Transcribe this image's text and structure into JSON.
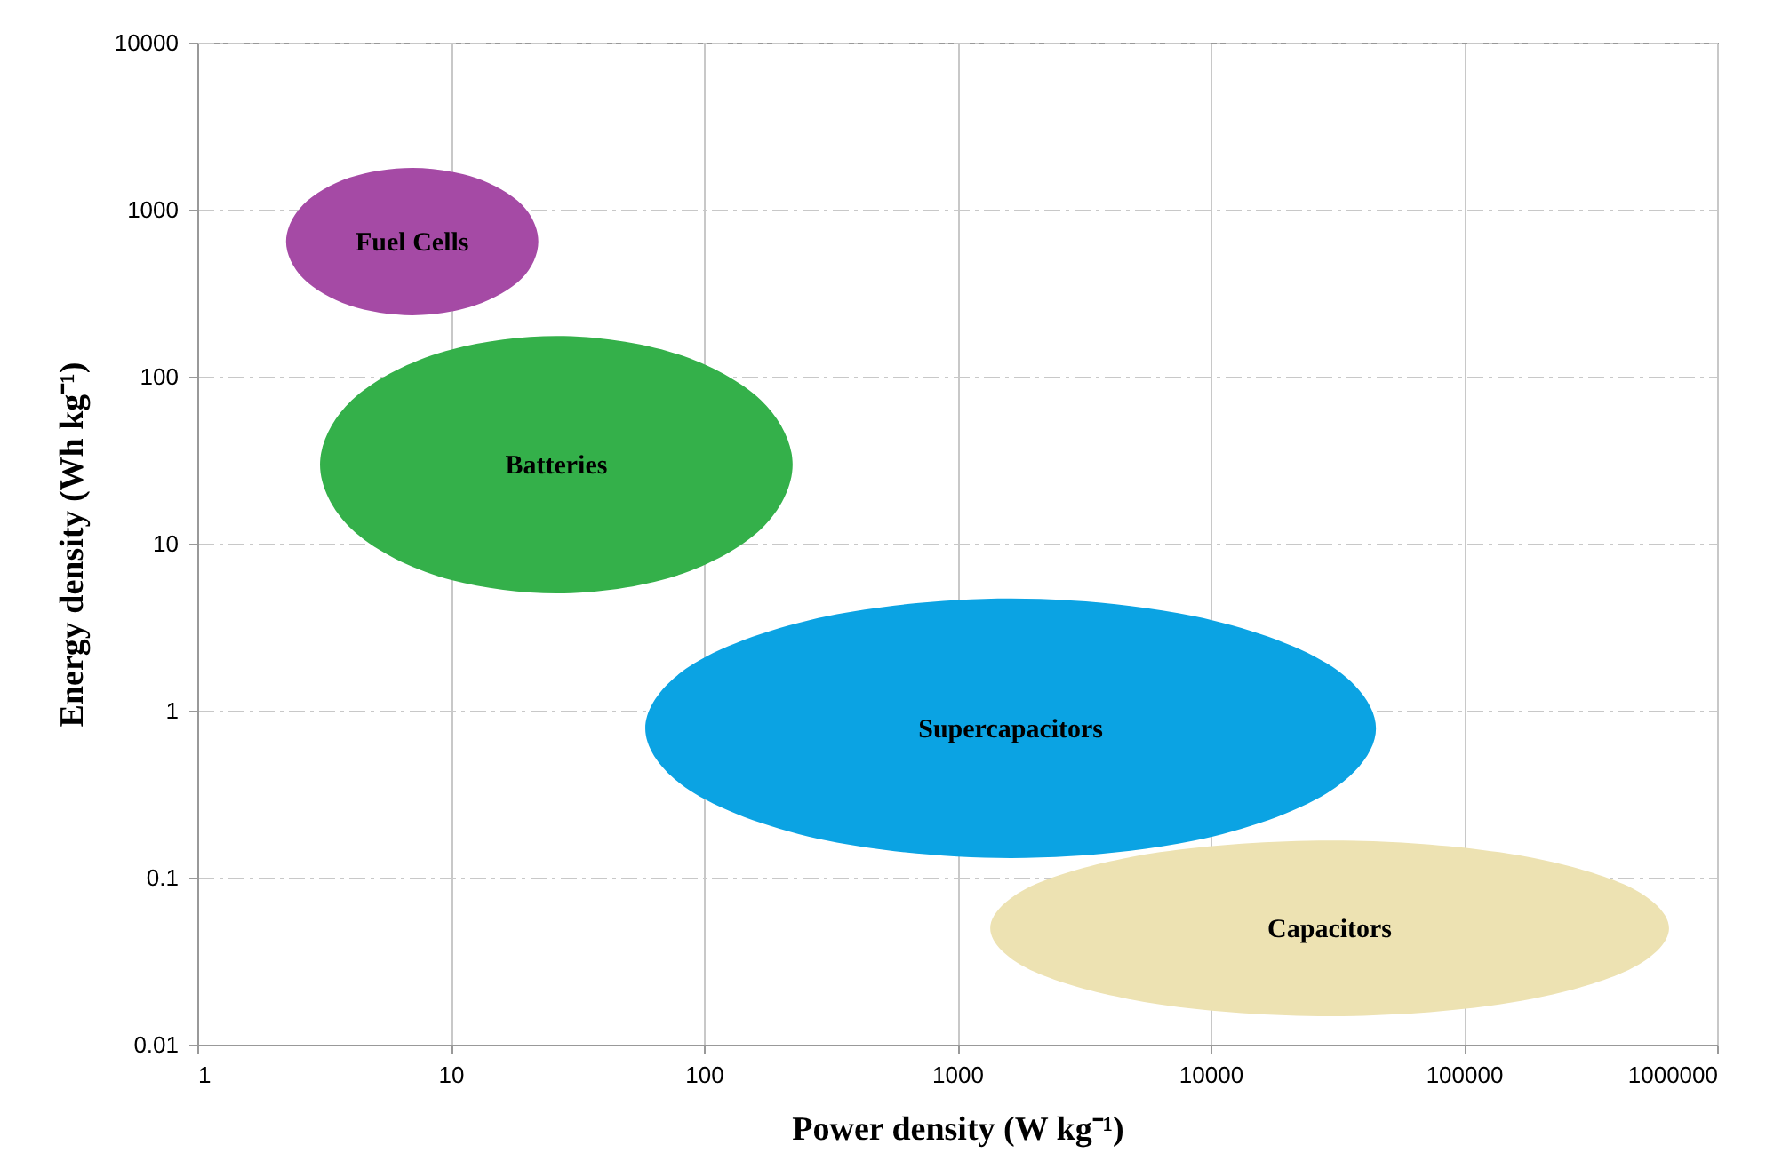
{
  "chart_data": {
    "type": "area",
    "xlabel": "Power density (W kg⁻¹)",
    "ylabel": "Energy density (Wh kg⁻¹)",
    "log": "xy",
    "grid": true,
    "xlim": [
      1,
      1000000
    ],
    "xticks": [
      1,
      10,
      100,
      1000,
      10000,
      100000,
      1000000
    ],
    "ylim": [
      0.01,
      10000
    ],
    "yticks": [
      0.01,
      0.1,
      1,
      10,
      100,
      1000,
      10000
    ],
    "series": [
      {
        "name": "Fuel Cells",
        "color": "#a54aa5",
        "x": [
          22.2,
          19.1,
          12.5,
          7.06,
          3.98,
          2.62,
          2.24,
          2.62,
          3.98,
          7.06,
          12.5,
          19.1
        ],
        "values": [
          644,
          1072,
          1552,
          1778,
          1552,
          1072,
          644,
          387,
          267,
          233,
          267,
          387
        ]
      },
      {
        "name": "Batteries",
        "color": "#34b04a",
        "x": [
          224,
          168,
          76.7,
          26.2,
          8.93,
          4.07,
          3.05,
          4.07,
          8.93,
          26.2,
          76.7,
          168
        ],
        "values": [
          29.7,
          72.3,
          138,
          175,
          138,
          72.3,
          29.7,
          12.2,
          6.38,
          5.04,
          6.38,
          12.2
        ]
      },
      {
        "name": "Supercapacitors",
        "color": "#0ba3e3",
        "x": [
          45000,
          28800,
          8550,
          1630,
          309,
          91.6,
          58.7,
          91.6,
          309,
          1630,
          8550,
          28800
        ],
        "values": [
          0.783,
          1.92,
          3.69,
          4.69,
          3.69,
          1.92,
          0.783,
          0.32,
          0.166,
          0.131,
          0.166,
          0.32
        ]
      },
      {
        "name": "Capacitors",
        "color": "#ede2b2",
        "x": [
          646000,
          427000,
          138000,
          29500,
          6310,
          2040,
          1350,
          2040,
          6310,
          29500,
          138000,
          427000
        ],
        "values": [
          0.0498,
          0.0914,
          0.142,
          0.167,
          0.142,
          0.0914,
          0.0498,
          0.0271,
          0.0174,
          0.0148,
          0.0174,
          0.0271
        ]
      }
    ]
  }
}
